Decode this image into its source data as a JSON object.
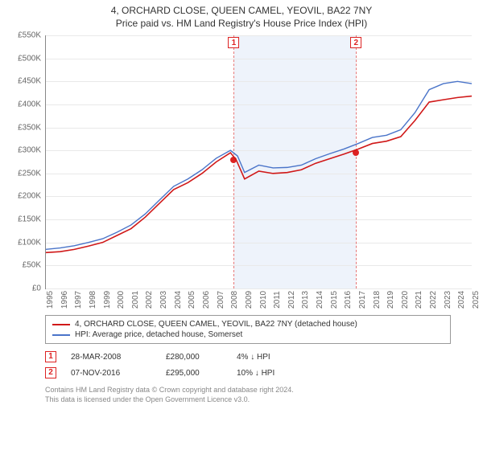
{
  "title": "4, ORCHARD CLOSE, QUEEN CAMEL, YEOVIL, BA22 7NY",
  "subtitle": "Price paid vs. HM Land Registry's House Price Index (HPI)",
  "chart": {
    "type": "line",
    "ylim": [
      0,
      550000
    ],
    "ytick_step": 50000,
    "xyears": [
      1995,
      1996,
      1997,
      1998,
      1999,
      2000,
      2001,
      2002,
      2003,
      2004,
      2005,
      2006,
      2007,
      2008,
      2009,
      2010,
      2011,
      2012,
      2013,
      2014,
      2015,
      2016,
      2017,
      2018,
      2019,
      2020,
      2021,
      2022,
      2023,
      2024,
      2025
    ],
    "background_color": "#ffffff",
    "grid_color": "#e9e9e9",
    "axis_color": "#888888",
    "shade": {
      "from_year": 2008.25,
      "to_year": 2016.85,
      "color": "#eef3fb"
    },
    "series": [
      {
        "name": "property",
        "label": "4, ORCHARD CLOSE, QUEEN CAMEL, YEOVIL, BA22 7NY (detached house)",
        "color": "#d01818",
        "width": 1.6,
        "points": [
          [
            1995,
            78000
          ],
          [
            1996,
            80000
          ],
          [
            1997,
            85000
          ],
          [
            1998,
            92000
          ],
          [
            1999,
            100000
          ],
          [
            2000,
            115000
          ],
          [
            2001,
            130000
          ],
          [
            2002,
            155000
          ],
          [
            2003,
            185000
          ],
          [
            2004,
            215000
          ],
          [
            2005,
            230000
          ],
          [
            2006,
            250000
          ],
          [
            2007,
            275000
          ],
          [
            2008,
            295000
          ],
          [
            2008.4,
            280000
          ],
          [
            2009,
            238000
          ],
          [
            2010,
            255000
          ],
          [
            2011,
            250000
          ],
          [
            2012,
            252000
          ],
          [
            2013,
            258000
          ],
          [
            2014,
            272000
          ],
          [
            2015,
            282000
          ],
          [
            2016,
            292000
          ],
          [
            2017,
            303000
          ],
          [
            2018,
            315000
          ],
          [
            2019,
            320000
          ],
          [
            2020,
            330000
          ],
          [
            2021,
            365000
          ],
          [
            2022,
            405000
          ],
          [
            2023,
            410000
          ],
          [
            2024,
            415000
          ],
          [
            2025,
            418000
          ]
        ]
      },
      {
        "name": "hpi",
        "label": "HPI: Average price, detached house, Somerset",
        "color": "#4a74c9",
        "width": 1.4,
        "points": [
          [
            1995,
            85000
          ],
          [
            1996,
            88000
          ],
          [
            1997,
            93000
          ],
          [
            1998,
            100000
          ],
          [
            1999,
            108000
          ],
          [
            2000,
            122000
          ],
          [
            2001,
            138000
          ],
          [
            2002,
            162000
          ],
          [
            2003,
            192000
          ],
          [
            2004,
            222000
          ],
          [
            2005,
            238000
          ],
          [
            2006,
            258000
          ],
          [
            2007,
            283000
          ],
          [
            2008,
            300000
          ],
          [
            2008.5,
            288000
          ],
          [
            2009,
            252000
          ],
          [
            2010,
            268000
          ],
          [
            2011,
            262000
          ],
          [
            2012,
            263000
          ],
          [
            2013,
            268000
          ],
          [
            2014,
            282000
          ],
          [
            2015,
            293000
          ],
          [
            2016,
            303000
          ],
          [
            2017,
            315000
          ],
          [
            2018,
            328000
          ],
          [
            2019,
            333000
          ],
          [
            2020,
            345000
          ],
          [
            2021,
            382000
          ],
          [
            2022,
            432000
          ],
          [
            2023,
            445000
          ],
          [
            2024,
            450000
          ],
          [
            2025,
            445000
          ]
        ]
      }
    ],
    "markers": [
      {
        "n": "1",
        "year": 2008.24,
        "value": 280000
      },
      {
        "n": "2",
        "year": 2016.85,
        "value": 295000
      }
    ]
  },
  "legend": [
    {
      "color": "#d01818",
      "text": "4, ORCHARD CLOSE, QUEEN CAMEL, YEOVIL, BA22 7NY (detached house)"
    },
    {
      "color": "#4a74c9",
      "text": "HPI: Average price, detached house, Somerset"
    }
  ],
  "events": [
    {
      "n": "1",
      "date": "28-MAR-2008",
      "price": "£280,000",
      "diff": "4%  ↓ HPI"
    },
    {
      "n": "2",
      "date": "07-NOV-2016",
      "price": "£295,000",
      "diff": "10%  ↓ HPI"
    }
  ],
  "footer": {
    "line1": "Contains HM Land Registry data © Crown copyright and database right 2024.",
    "line2": "This data is licensed under the Open Government Licence v3.0."
  }
}
